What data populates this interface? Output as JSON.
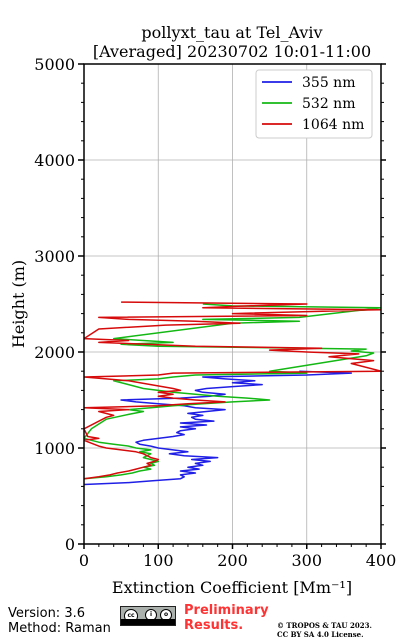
{
  "chart_data": {
    "type": "line",
    "title": "pollyxt_tau at Tel_Aviv",
    "subtitle": "[Averaged] 20230702 10:01-11:00",
    "xlabel": "Extinction Coefficient [Mm⁻¹]",
    "ylabel": "Height (m)",
    "xlim": [
      0,
      400
    ],
    "ylim": [
      0,
      5000
    ],
    "xticks": [
      "0",
      "100",
      "200",
      "300",
      "400"
    ],
    "yticks": [
      "0",
      "1000",
      "2000",
      "3000",
      "4000",
      "5000"
    ],
    "grid": true,
    "legend_position": "top-right",
    "series": [
      {
        "name": "355 nm",
        "color": "#1f1fe6",
        "points": [
          [
            0,
            620
          ],
          [
            60,
            640
          ],
          [
            95,
            660
          ],
          [
            130,
            680
          ],
          [
            135,
            700
          ],
          [
            130,
            720
          ],
          [
            150,
            740
          ],
          [
            130,
            760
          ],
          [
            155,
            780
          ],
          [
            140,
            800
          ],
          [
            160,
            820
          ],
          [
            150,
            840
          ],
          [
            170,
            860
          ],
          [
            145,
            880
          ],
          [
            180,
            900
          ],
          [
            135,
            920
          ],
          [
            115,
            940
          ],
          [
            140,
            960
          ],
          [
            120,
            980
          ],
          [
            100,
            1000
          ],
          [
            90,
            1020
          ],
          [
            75,
            1040
          ],
          [
            70,
            1060
          ],
          [
            80,
            1080
          ],
          [
            100,
            1100
          ],
          [
            120,
            1120
          ],
          [
            135,
            1140
          ],
          [
            125,
            1160
          ],
          [
            130,
            1180
          ],
          [
            150,
            1200
          ],
          [
            130,
            1220
          ],
          [
            165,
            1240
          ],
          [
            130,
            1260
          ],
          [
            175,
            1280
          ],
          [
            150,
            1300
          ],
          [
            145,
            1320
          ],
          [
            160,
            1340
          ],
          [
            140,
            1360
          ],
          [
            165,
            1380
          ],
          [
            190,
            1400
          ],
          [
            150,
            1420
          ],
          [
            135,
            1440
          ],
          [
            100,
            1460
          ],
          [
            70,
            1480
          ],
          [
            50,
            1500
          ],
          [
            130,
            1520
          ],
          [
            170,
            1540
          ],
          [
            190,
            1560
          ],
          [
            160,
            1580
          ],
          [
            150,
            1600
          ],
          [
            165,
            1620
          ],
          [
            200,
            1640
          ],
          [
            240,
            1660
          ],
          [
            200,
            1680
          ],
          [
            230,
            1700
          ],
          [
            190,
            1720
          ],
          [
            160,
            1740
          ],
          [
            300,
            1760
          ],
          [
            360,
            1780
          ],
          [
            290,
            1800
          ]
        ]
      },
      {
        "name": "532 nm",
        "color": "#14b814",
        "points": [
          [
            0,
            680
          ],
          [
            30,
            700
          ],
          [
            50,
            720
          ],
          [
            65,
            740
          ],
          [
            75,
            760
          ],
          [
            90,
            780
          ],
          [
            80,
            800
          ],
          [
            95,
            820
          ],
          [
            90,
            840
          ],
          [
            100,
            860
          ],
          [
            90,
            880
          ],
          [
            80,
            900
          ],
          [
            85,
            920
          ],
          [
            90,
            940
          ],
          [
            75,
            960
          ],
          [
            90,
            980
          ],
          [
            70,
            1000
          ],
          [
            60,
            1020
          ],
          [
            40,
            1040
          ],
          [
            20,
            1060
          ],
          [
            10,
            1080
          ],
          [
            0,
            1100
          ],
          [
            10,
            1200
          ],
          [
            30,
            1300
          ],
          [
            60,
            1350
          ],
          [
            80,
            1380
          ],
          [
            60,
            1400
          ],
          [
            90,
            1420
          ],
          [
            120,
            1440
          ],
          [
            160,
            1460
          ],
          [
            200,
            1480
          ],
          [
            250,
            1500
          ],
          [
            220,
            1520
          ],
          [
            180,
            1540
          ],
          [
            150,
            1560
          ],
          [
            120,
            1580
          ],
          [
            100,
            1600
          ],
          [
            80,
            1620
          ],
          [
            60,
            1660
          ],
          [
            40,
            1700
          ],
          [
            100,
            1720
          ],
          [
            120,
            1740
          ],
          [
            150,
            1760
          ],
          [
            300,
            1780
          ],
          [
            250,
            1800
          ],
          [
            380,
            1960
          ],
          [
            390,
            1990
          ],
          [
            360,
            2010
          ],
          [
            380,
            2030
          ],
          [
            100,
            2060
          ],
          [
            50,
            2080
          ],
          [
            120,
            2100
          ],
          [
            40,
            2140
          ],
          [
            200,
            2300
          ],
          [
            290,
            2320
          ],
          [
            160,
            2340
          ],
          [
            290,
            2360
          ],
          [
            400,
            2460
          ],
          [
            200,
            2480
          ],
          [
            160,
            2500
          ]
        ]
      },
      {
        "name": "1064 nm",
        "color": "#d60a0a",
        "points": [
          [
            0,
            680
          ],
          [
            20,
            700
          ],
          [
            35,
            720
          ],
          [
            45,
            740
          ],
          [
            60,
            760
          ],
          [
            70,
            780
          ],
          [
            80,
            800
          ],
          [
            90,
            820
          ],
          [
            85,
            840
          ],
          [
            95,
            860
          ],
          [
            100,
            880
          ],
          [
            90,
            900
          ],
          [
            85,
            920
          ],
          [
            80,
            940
          ],
          [
            70,
            960
          ],
          [
            50,
            980
          ],
          [
            30,
            1000
          ],
          [
            20,
            1020
          ],
          [
            0,
            1080
          ],
          [
            20,
            1100
          ],
          [
            5,
            1120
          ],
          [
            0,
            1200
          ],
          [
            30,
            1320
          ],
          [
            40,
            1340
          ],
          [
            20,
            1380
          ],
          [
            60,
            1400
          ],
          [
            0,
            1420
          ],
          [
            100,
            1440
          ],
          [
            140,
            1460
          ],
          [
            190,
            1480
          ],
          [
            150,
            1500
          ],
          [
            120,
            1520
          ],
          [
            100,
            1540
          ],
          [
            120,
            1560
          ],
          [
            100,
            1580
          ],
          [
            130,
            1600
          ],
          [
            120,
            1620
          ],
          [
            90,
            1660
          ],
          [
            60,
            1700
          ],
          [
            30,
            1720
          ],
          [
            0,
            1740
          ],
          [
            100,
            1760
          ],
          [
            120,
            1780
          ],
          [
            400,
            1800
          ],
          [
            360,
            1880
          ],
          [
            390,
            1910
          ],
          [
            330,
            1950
          ],
          [
            370,
            1980
          ],
          [
            300,
            2000
          ],
          [
            250,
            2020
          ],
          [
            320,
            2040
          ],
          [
            150,
            2060
          ],
          [
            20,
            2100
          ],
          [
            60,
            2120
          ],
          [
            0,
            2140
          ],
          [
            20,
            2240
          ],
          [
            110,
            2280
          ],
          [
            210,
            2300
          ],
          [
            150,
            2320
          ],
          [
            60,
            2340
          ],
          [
            20,
            2360
          ],
          [
            300,
            2380
          ],
          [
            200,
            2400
          ],
          [
            400,
            2440
          ],
          [
            160,
            2460
          ],
          [
            220,
            2480
          ],
          [
            300,
            2500
          ],
          [
            50,
            2520
          ]
        ]
      }
    ]
  },
  "footer": {
    "version": "Version: 3.6",
    "method": "Method: Raman",
    "preliminary_line1": "Preliminary",
    "preliminary_line2": "Results.",
    "copyright_line1": "© TROPOS & TAU 2023.",
    "copyright_line2": "CC BY SA 4.0 License.",
    "license_badge_icon": "cc-by-sa-icon"
  }
}
